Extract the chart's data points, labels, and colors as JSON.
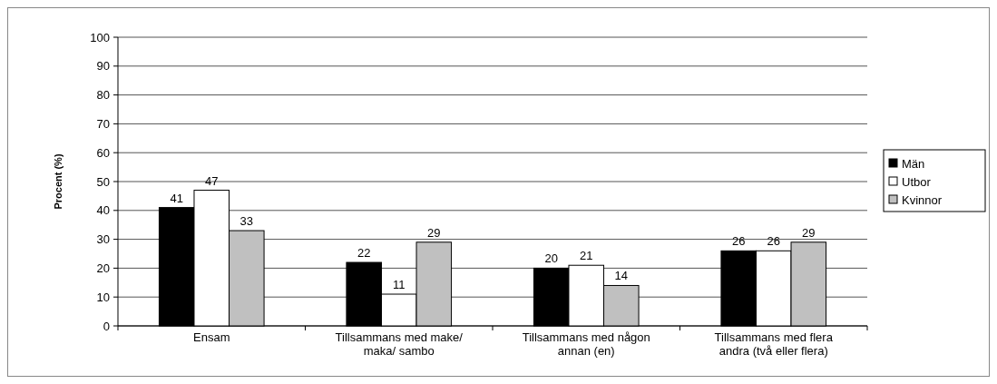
{
  "chart_data": {
    "type": "bar",
    "ylabel": "Procent (%)",
    "categories": [
      "Ensam",
      "Tillsammans med make/ maka/ sambo",
      "Tillsammans med någon annan (en)",
      "Tillsammans med flera andra (två eller flera)"
    ],
    "series": [
      {
        "name": "Män",
        "color": "#000000",
        "values": [
          41,
          22,
          20,
          26
        ]
      },
      {
        "name": "Utbor",
        "color": "#ffffff",
        "values": [
          47,
          11,
          21,
          26
        ]
      },
      {
        "name": "Kvinnor",
        "color": "#c0c0c0",
        "values": [
          33,
          29,
          14,
          29
        ]
      }
    ],
    "ylim": [
      0,
      100
    ],
    "yticks": [
      0,
      10,
      20,
      30,
      40,
      50,
      60,
      70,
      80,
      90,
      100
    ],
    "grid": "y",
    "legend": "right",
    "data_labels": true
  }
}
